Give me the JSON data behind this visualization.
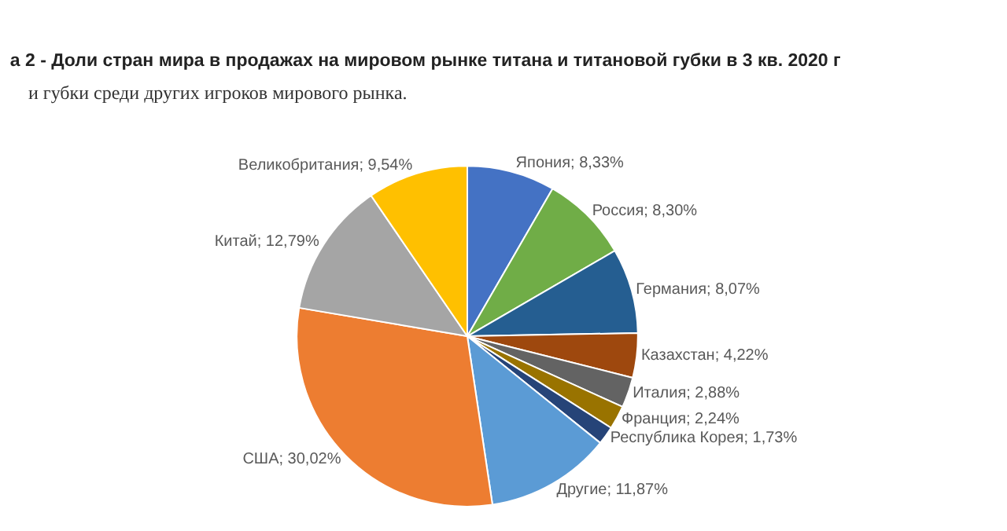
{
  "chart_data": {
    "type": "pie",
    "title": "а 2 - Доли стран мира в продажах на мировом рынке титана и титановой губки в 3 кв. 2020 г",
    "annotations": [
      "и губки среди других игроков мирового рынка."
    ],
    "categories": [
      "Япония",
      "Россия",
      "Германия",
      "Казахстан",
      "Италия",
      "Франция",
      "Республика Корея",
      "Другие",
      "США",
      "Китай",
      "Великобритания"
    ],
    "values": [
      8.33,
      8.3,
      8.07,
      4.22,
      2.88,
      2.24,
      1.73,
      11.87,
      30.02,
      12.79,
      9.54
    ],
    "value_labels": [
      "8,33%",
      "8,30%",
      "8,07%",
      "4,22%",
      "2,88%",
      "2,24%",
      "1,73%",
      "11,87%",
      "30,02%",
      "12,79%",
      "9,54%"
    ],
    "colors": [
      "#4472c4",
      "#70ad47",
      "#255e91",
      "#9e480e",
      "#636363",
      "#997300",
      "#264478",
      "#5b9bd5",
      "#ed7d31",
      "#a5a5a5",
      "#ffc000"
    ],
    "legend": false
  }
}
